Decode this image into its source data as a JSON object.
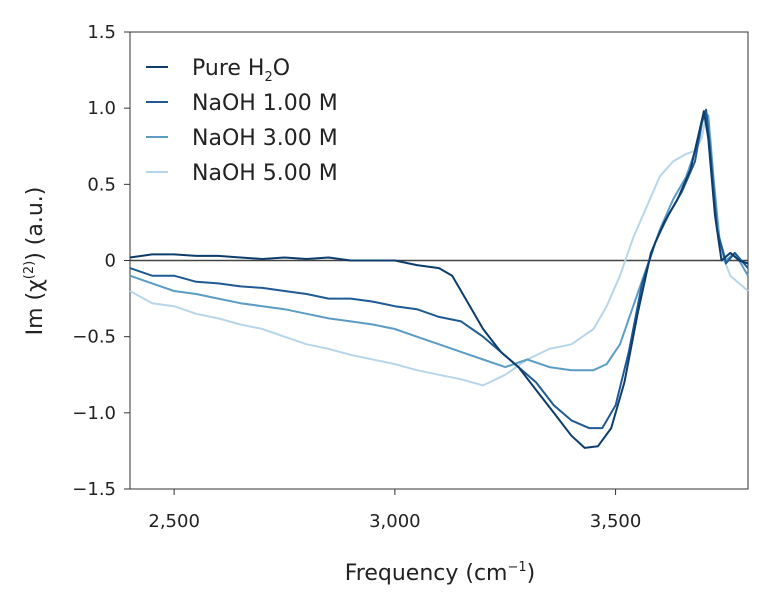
{
  "chart_data": {
    "type": "line",
    "xlabel": "Frequency (cm",
    "xlabel_sup": "−1",
    "xlabel_end": ")",
    "ylabel": "Im (χ",
    "ylabel_sup": "(2)",
    "ylabel_end": ") (a.u.)",
    "xlim": [
      2400,
      3800
    ],
    "ylim": [
      -1.5,
      1.5
    ],
    "xticks": [
      2500,
      3000,
      3500
    ],
    "xtick_labels": [
      "2,500",
      "3,000",
      "3,500"
    ],
    "yticks": [
      1.5,
      1.0,
      0.5,
      0,
      -0.5,
      -1.0,
      -1.5
    ],
    "ytick_labels": [
      "1.5",
      "1.0",
      "0.5",
      "0",
      "−0.5",
      "−1.0",
      "−1.5"
    ],
    "zero_line": true,
    "grid": false,
    "legend_position": "top-left",
    "series": [
      {
        "name_parts": [
          "Pure H",
          "2",
          "O"
        ],
        "color": "#0d3d6b",
        "x": [
          2400,
          2450,
          2500,
          2550,
          2600,
          2650,
          2700,
          2750,
          2800,
          2850,
          2900,
          2950,
          3000,
          3050,
          3100,
          3130,
          3160,
          3200,
          3240,
          3280,
          3320,
          3360,
          3400,
          3430,
          3460,
          3490,
          3520,
          3550,
          3580,
          3610,
          3640,
          3670,
          3690,
          3700,
          3710,
          3725,
          3740,
          3760,
          3780,
          3800
        ],
        "y": [
          0.02,
          0.04,
          0.04,
          0.03,
          0.03,
          0.02,
          0.01,
          0.02,
          0.01,
          0.02,
          0.0,
          0.0,
          0.0,
          -0.03,
          -0.05,
          -0.1,
          -0.25,
          -0.45,
          -0.6,
          -0.7,
          -0.85,
          -1.0,
          -1.15,
          -1.23,
          -1.22,
          -1.1,
          -0.8,
          -0.35,
          0.05,
          0.25,
          0.4,
          0.6,
          0.85,
          0.98,
          0.8,
          0.3,
          0.0,
          0.05,
          0.0,
          -0.02
        ]
      },
      {
        "name": "NaOH 1.00 M",
        "color": "#1f5a94",
        "x": [
          2400,
          2450,
          2500,
          2550,
          2600,
          2650,
          2700,
          2750,
          2800,
          2850,
          2900,
          2950,
          3000,
          3050,
          3100,
          3150,
          3200,
          3240,
          3280,
          3320,
          3360,
          3400,
          3440,
          3470,
          3500,
          3530,
          3560,
          3590,
          3620,
          3650,
          3680,
          3695,
          3705,
          3715,
          3730,
          3750,
          3770,
          3800
        ],
        "y": [
          -0.05,
          -0.1,
          -0.1,
          -0.14,
          -0.15,
          -0.17,
          -0.18,
          -0.2,
          -0.22,
          -0.25,
          -0.25,
          -0.27,
          -0.3,
          -0.32,
          -0.37,
          -0.4,
          -0.5,
          -0.6,
          -0.7,
          -0.8,
          -0.95,
          -1.05,
          -1.1,
          -1.1,
          -0.95,
          -0.6,
          -0.15,
          0.12,
          0.3,
          0.45,
          0.65,
          0.9,
          0.99,
          0.7,
          0.2,
          -0.02,
          0.05,
          -0.05
        ]
      },
      {
        "name": "NaOH 3.00 M",
        "color": "#5b9cc6",
        "x": [
          2400,
          2450,
          2500,
          2550,
          2600,
          2650,
          2700,
          2750,
          2800,
          2850,
          2900,
          2950,
          3000,
          3050,
          3100,
          3150,
          3200,
          3250,
          3300,
          3350,
          3400,
          3450,
          3480,
          3510,
          3540,
          3570,
          3600,
          3630,
          3660,
          3690,
          3700,
          3710,
          3720,
          3735,
          3750,
          3770,
          3800
        ],
        "y": [
          -0.1,
          -0.15,
          -0.2,
          -0.22,
          -0.25,
          -0.28,
          -0.3,
          -0.32,
          -0.35,
          -0.38,
          -0.4,
          -0.42,
          -0.45,
          -0.5,
          -0.55,
          -0.6,
          -0.65,
          -0.7,
          -0.65,
          -0.7,
          -0.72,
          -0.72,
          -0.68,
          -0.55,
          -0.3,
          -0.05,
          0.2,
          0.4,
          0.55,
          0.8,
          0.98,
          0.95,
          0.6,
          0.15,
          0.0,
          0.05,
          -0.1
        ]
      },
      {
        "name": "NaOH 5.00 M",
        "color": "#b8d6ea",
        "x": [
          2400,
          2450,
          2500,
          2550,
          2600,
          2650,
          2700,
          2750,
          2800,
          2850,
          2900,
          2950,
          3000,
          3050,
          3100,
          3150,
          3200,
          3250,
          3300,
          3350,
          3400,
          3450,
          3480,
          3510,
          3540,
          3570,
          3600,
          3630,
          3660,
          3680,
          3695,
          3705,
          3715,
          3725,
          3740,
          3760,
          3780,
          3800
        ],
        "y": [
          -0.2,
          -0.28,
          -0.3,
          -0.35,
          -0.38,
          -0.42,
          -0.45,
          -0.5,
          -0.55,
          -0.58,
          -0.62,
          -0.65,
          -0.68,
          -0.72,
          -0.75,
          -0.78,
          -0.82,
          -0.75,
          -0.65,
          -0.58,
          -0.55,
          -0.45,
          -0.3,
          -0.1,
          0.15,
          0.35,
          0.55,
          0.65,
          0.7,
          0.72,
          0.8,
          0.95,
          0.8,
          0.4,
          0.05,
          -0.1,
          -0.15,
          -0.2
        ]
      }
    ]
  }
}
